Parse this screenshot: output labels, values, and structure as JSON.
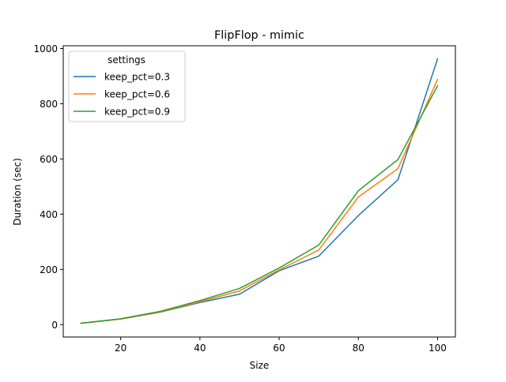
{
  "chart_data": {
    "type": "line",
    "title": "FlipFlop - mimic",
    "xlabel": "Size",
    "ylabel": "Duration (sec)",
    "xlim": [
      5.5,
      104.5
    ],
    "ylim": [
      -45,
      1010
    ],
    "xticks": [
      20,
      40,
      60,
      80,
      100
    ],
    "yticks": [
      0,
      200,
      400,
      600,
      800,
      1000
    ],
    "grid": false,
    "legend": {
      "title": "settings",
      "placement": "top-left"
    },
    "x": [
      10,
      20,
      30,
      40,
      50,
      60,
      70,
      80,
      90,
      100
    ],
    "series": [
      {
        "name": "keep_pct=0.3",
        "color": "#1f77b4",
        "values": [
          5,
          20,
          45,
          80,
          110,
          195,
          248,
          395,
          525,
          963
        ]
      },
      {
        "name": "keep_pct=0.6",
        "color": "#ff7f0e",
        "values": [
          5,
          20,
          46,
          83,
          122,
          198,
          270,
          462,
          565,
          888
        ]
      },
      {
        "name": "keep_pct=0.9",
        "color": "#2ca02c",
        "values": [
          5,
          21,
          48,
          87,
          131,
          205,
          288,
          485,
          598,
          865
        ]
      }
    ]
  }
}
